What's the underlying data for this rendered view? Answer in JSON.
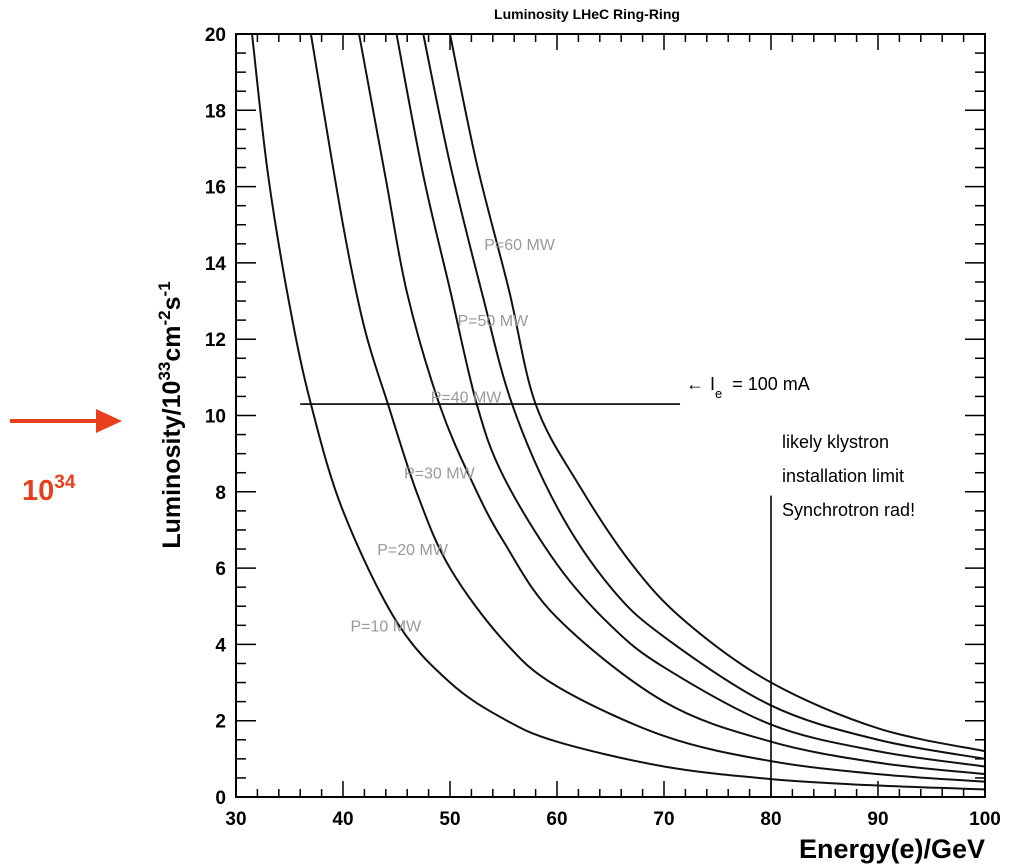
{
  "chart_data": {
    "type": "line",
    "title": "Luminosity  LHeC Ring-Ring",
    "xlabel": "Energy(e)/GeV",
    "ylabel_base": "Luminosity/10",
    "ylabel_exp1": "33",
    "ylabel_mid": "cm",
    "ylabel_exp2": "-2",
    "ylabel_s": "s",
    "ylabel_exp3": "-1",
    "xlim": [
      30,
      100
    ],
    "ylim": [
      0,
      20
    ],
    "x_ticks": [
      "30",
      "40",
      "50",
      "60",
      "70",
      "80",
      "90",
      "100"
    ],
    "y_ticks": [
      "0",
      "2",
      "4",
      "6",
      "8",
      "10",
      "12",
      "14",
      "16",
      "18",
      "20"
    ],
    "grid": false,
    "series": [
      {
        "name": "P=10 MW",
        "points": [
          [
            31.5,
            20
          ],
          [
            33,
            16.3
          ],
          [
            35,
            12.9
          ],
          [
            37,
            10.3
          ],
          [
            40,
            7.5
          ],
          [
            45,
            4.6
          ],
          [
            50,
            3.0
          ],
          [
            55,
            2.05
          ],
          [
            60,
            1.45
          ],
          [
            70,
            0.8
          ],
          [
            80,
            0.47
          ],
          [
            90,
            0.3
          ],
          [
            100,
            0.2
          ]
        ]
      },
      {
        "name": "P=20 MW",
        "points": [
          [
            37,
            20
          ],
          [
            40,
            15.0
          ],
          [
            42,
            12.3
          ],
          [
            44.2,
            10.3
          ],
          [
            47,
            7.9
          ],
          [
            50,
            6.0
          ],
          [
            55,
            4.1
          ],
          [
            60,
            2.9
          ],
          [
            70,
            1.6
          ],
          [
            80,
            0.94
          ],
          [
            90,
            0.6
          ],
          [
            100,
            0.4
          ]
        ]
      },
      {
        "name": "P=30 MW",
        "points": [
          [
            41.5,
            20
          ],
          [
            44,
            16.2
          ],
          [
            46,
            13.2
          ],
          [
            49,
            10.3
          ],
          [
            52,
            8.3
          ],
          [
            55,
            6.7
          ],
          [
            60,
            4.7
          ],
          [
            70,
            2.5
          ],
          [
            80,
            1.45
          ],
          [
            90,
            0.9
          ],
          [
            100,
            0.6
          ]
        ]
      },
      {
        "name": "P=40 MW",
        "points": [
          [
            45,
            20
          ],
          [
            47.5,
            16.3
          ],
          [
            50,
            13.3
          ],
          [
            52.5,
            10.3
          ],
          [
            55,
            8.4
          ],
          [
            60,
            6.1
          ],
          [
            65,
            4.5
          ],
          [
            70,
            3.4
          ],
          [
            80,
            1.9
          ],
          [
            90,
            1.2
          ],
          [
            100,
            0.8
          ]
        ]
      },
      {
        "name": "P=50 MW",
        "points": [
          [
            47.5,
            20
          ],
          [
            50,
            16.6
          ],
          [
            53,
            13.2
          ],
          [
            55.8,
            10.3
          ],
          [
            60,
            7.6
          ],
          [
            65,
            5.5
          ],
          [
            70,
            4.2
          ],
          [
            80,
            2.4
          ],
          [
            90,
            1.5
          ],
          [
            100,
            1.0
          ]
        ]
      },
      {
        "name": "P=60 MW",
        "points": [
          [
            50,
            20
          ],
          [
            52.5,
            16.6
          ],
          [
            55.5,
            13.3
          ],
          [
            58,
            10.3
          ],
          [
            62,
            8.2
          ],
          [
            67,
            6.1
          ],
          [
            72,
            4.6
          ],
          [
            80,
            3.0
          ],
          [
            90,
            1.8
          ],
          [
            100,
            1.2
          ]
        ]
      }
    ],
    "curve_label_positions": [
      {
        "text": "P=10 MW",
        "x": 44,
        "y": 4.5
      },
      {
        "text": "P=20 MW",
        "x": 46.5,
        "y": 6.5
      },
      {
        "text": "P=30 MW",
        "x": 49,
        "y": 8.5
      },
      {
        "text": "P=40 MW",
        "x": 51.5,
        "y": 10.5
      },
      {
        "text": "P=50 MW",
        "x": 54,
        "y": 12.5
      },
      {
        "text": "P=60 MW",
        "x": 56.5,
        "y": 14.5
      }
    ],
    "current_line": {
      "y": 10.3,
      "x_start": 36,
      "x_end": 71.5,
      "label_arrow": "←",
      "label_I": "I",
      "label_sub": "e",
      "label_rest": "= 100 mA"
    },
    "limit_line": {
      "x": 80,
      "y_top": 7.9,
      "y_bottom": 0
    },
    "limit_text": [
      "likely klystron",
      "installation limit",
      "Synchrotron rad!"
    ]
  },
  "side_marker": {
    "base": "10",
    "exponent": "34",
    "color": "#e8401c"
  }
}
